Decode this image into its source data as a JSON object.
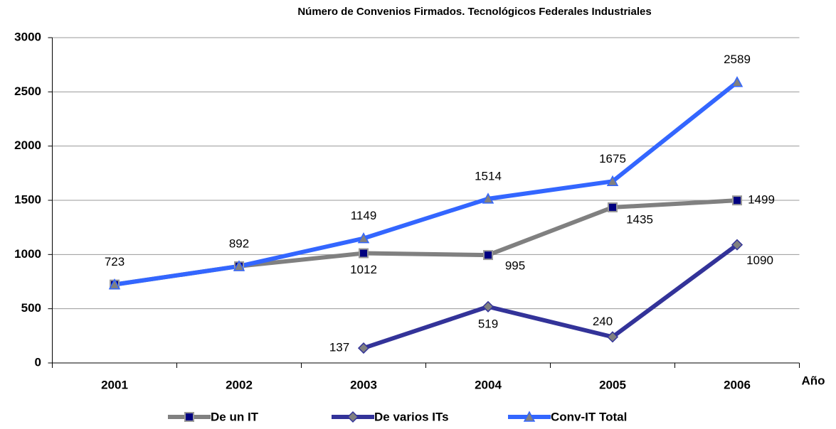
{
  "chart_data": {
    "type": "line",
    "title": "Número de Convenios Firmados. Tecnológicos Federales Industriales",
    "x_label": "Año",
    "categories": [
      "2001",
      "2002",
      "2003",
      "2004",
      "2005",
      "2006"
    ],
    "series": [
      {
        "name": "De un IT",
        "color": "#808080",
        "marker_color": "#000080",
        "marker": "square",
        "values": [
          723,
          892,
          1012,
          995,
          1435,
          1499
        ],
        "value_labels": [
          null,
          null,
          "1012",
          "995",
          "1435",
          "1499"
        ]
      },
      {
        "name": "De varios ITs",
        "color": "#333399",
        "marker_color": "#808080",
        "marker": "diamond",
        "values": [
          null,
          null,
          137,
          519,
          240,
          1090
        ]
      },
      {
        "name": "Conv-IT Total",
        "color": "#3366ff",
        "marker_color": "#808080",
        "marker": "triangle",
        "values": [
          723,
          892,
          1149,
          1514,
          1675,
          2589
        ]
      }
    ],
    "ylim": [
      0,
      3000
    ],
    "yticks": [
      0,
      500,
      1000,
      1500,
      2000,
      2500,
      3000
    ],
    "grid": true
  }
}
